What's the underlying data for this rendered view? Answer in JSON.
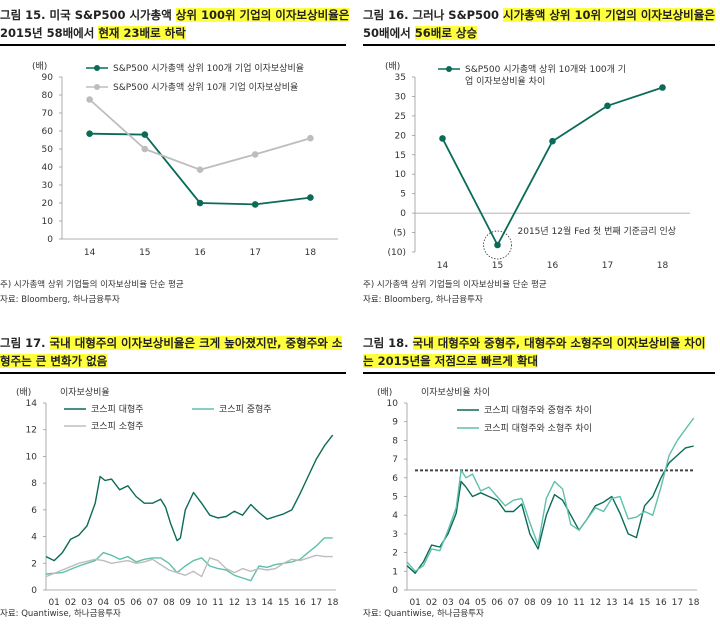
{
  "fig15": {
    "title_l1": "그림 15. 미국 S&P500 시가총액 ",
    "title_l1_hl": "상위 100위 기업의 이자보상비율은",
    "title_l2": "2015년 58배에서 ",
    "title_l2_hl": "현재 23배로 하락",
    "note": "주) 시가총액 상위 기업들의 이자보상비율 단순 평균",
    "source": "자료: Bloomberg, 하나금융투자"
  },
  "fig16": {
    "title_l1": "그림 16. 그러나 S&P500 ",
    "title_l1_hl": "시가총액 상위 10위 기업의 이자보상비율은",
    "title_l2": "50배에서 ",
    "title_l2_hl": "56배로 상승",
    "note": "주) 시가총액 상위 기업들의 이자보상비율 단순 평균",
    "source": "자료: Bloomberg, 하나금융투자"
  },
  "fig17": {
    "title_l1": "그림 17. ",
    "title_l1_hl": "국내 대형주의 이자보상비율은 크게 높아졌지만, 중형주와 소",
    "title_l2": "",
    "title_l2_hl": "형주는 큰 변화가 없음",
    "source": "자료: Quantiwise, 하나금융투자"
  },
  "fig18": {
    "title_l1": "그림 18. ",
    "title_l1_hl": "국내 대형주와 중형주, 대형주와 소형주의 이자보상비율 차이",
    "title_l2": "",
    "title_l2_hl": "는 2015년을 저점으로 빠르게 확대",
    "source": "자료: Quantiwise, 하나금융투자"
  },
  "chart_data": [
    {
      "type": "line",
      "unit": "(배)",
      "categories": [
        "14",
        "15",
        "16",
        "17",
        "18"
      ],
      "ylim": [
        0,
        90
      ],
      "yticks": [
        0,
        10,
        20,
        30,
        40,
        50,
        60,
        70,
        80,
        90
      ],
      "legend_position": "top-right",
      "series": [
        {
          "name": "S&P500 시가총액 상위 100개 기업 이자보상비율",
          "color": "#0b6b58",
          "values": [
            58.5,
            58,
            20,
            19.2,
            23
          ]
        },
        {
          "name": "S&P500 시가총액 상위 10개 기업 이자보상비율",
          "color": "#bdbdbd",
          "values": [
            77.5,
            50,
            38.5,
            47,
            56
          ]
        }
      ]
    },
    {
      "type": "line",
      "unit": "(배)",
      "categories": [
        "14",
        "15",
        "16",
        "17",
        "18"
      ],
      "ylim": [
        -10,
        35
      ],
      "yticks": [
        -10,
        -5,
        0,
        5,
        10,
        15,
        20,
        25,
        30,
        35
      ],
      "ytick_labels": [
        "(10)",
        "(5)",
        "0",
        "5",
        "10",
        "15",
        "20",
        "25",
        "30",
        "35"
      ],
      "legend_position": "top-right",
      "annotation": "2015년 12월 Fed 첫 번째 기준금리 인상",
      "series": [
        {
          "name": "S&P500 시가총액 상위 10개와 100개 기업 이자보상비율 차이",
          "color": "#0b6b58",
          "values": [
            19.2,
            -8.2,
            18.5,
            27.6,
            32.3
          ]
        }
      ]
    },
    {
      "type": "line",
      "unit": "(배)",
      "sublabel": "이자보상비율",
      "x_tick_labels": [
        "01",
        "02",
        "03",
        "04",
        "05",
        "06",
        "07",
        "08",
        "09",
        "10",
        "11",
        "12",
        "13",
        "14",
        "15",
        "16",
        "17",
        "18"
      ],
      "xlim": [
        2001,
        2018.7
      ],
      "ylim": [
        0,
        14
      ],
      "yticks": [
        0,
        2,
        4,
        6,
        8,
        10,
        12,
        14
      ],
      "legend_position": "top",
      "series": [
        {
          "name": "코스피 대형주",
          "color": "#0b6b58",
          "x": [
            2001.0,
            2001.5,
            2002.0,
            2002.5,
            2003.0,
            2003.5,
            2004.0,
            2004.3,
            2004.6,
            2005.0,
            2005.5,
            2006.0,
            2006.5,
            2007.0,
            2007.5,
            2008.0,
            2008.3,
            2008.6,
            2009.0,
            2009.2,
            2009.5,
            2010.0,
            2010.5,
            2011.0,
            2011.5,
            2012.0,
            2012.5,
            2013.0,
            2013.5,
            2014.0,
            2014.5,
            2015.0,
            2015.5,
            2016.0,
            2016.5,
            2017.0,
            2017.5,
            2018.0,
            2018.5
          ],
          "values": [
            2.5,
            2.2,
            2.8,
            3.8,
            4.1,
            4.8,
            6.5,
            8.5,
            8.2,
            8.3,
            7.5,
            7.8,
            7.0,
            6.5,
            6.5,
            6.8,
            6.2,
            5.0,
            3.7,
            3.9,
            6.0,
            7.3,
            6.5,
            5.6,
            5.4,
            5.5,
            5.9,
            5.6,
            6.4,
            5.8,
            5.3,
            5.5,
            5.7,
            6.0,
            7.2,
            8.5,
            9.8,
            10.8,
            11.6
          ]
        },
        {
          "name": "코스피 중형주",
          "color": "#5fc0aa",
          "x": [
            2001.0,
            2002.0,
            2003.0,
            2004.0,
            2004.5,
            2005.0,
            2005.5,
            2006.0,
            2006.5,
            2007.0,
            2007.5,
            2008.0,
            2008.5,
            2009.0,
            2009.5,
            2010.0,
            2010.5,
            2011.0,
            2011.5,
            2012.0,
            2012.5,
            2013.0,
            2013.5,
            2014.0,
            2014.5,
            2015.0,
            2015.5,
            2016.0,
            2016.5,
            2017.0,
            2017.5,
            2018.0,
            2018.5
          ],
          "values": [
            1.2,
            1.3,
            1.8,
            2.2,
            2.8,
            2.6,
            2.3,
            2.5,
            2.1,
            2.3,
            2.4,
            2.4,
            2.0,
            1.3,
            1.8,
            2.2,
            2.4,
            1.8,
            1.6,
            1.5,
            1.1,
            0.9,
            0.7,
            1.8,
            1.7,
            1.9,
            2.0,
            2.1,
            2.3,
            2.8,
            3.3,
            3.9,
            3.9
          ]
        },
        {
          "name": "코스피 소형주",
          "color": "#bdbdbd",
          "x": [
            2001.0,
            2002.0,
            2003.0,
            2004.0,
            2004.5,
            2005.0,
            2005.5,
            2006.0,
            2006.5,
            2007.0,
            2007.5,
            2008.0,
            2008.5,
            2009.0,
            2009.5,
            2010.0,
            2010.5,
            2011.0,
            2011.5,
            2012.0,
            2012.5,
            2013.0,
            2013.5,
            2014.0,
            2014.5,
            2015.0,
            2015.5,
            2016.0,
            2016.5,
            2017.0,
            2017.5,
            2018.0,
            2018.5
          ],
          "values": [
            1.0,
            1.5,
            2.0,
            2.3,
            2.2,
            2.0,
            2.1,
            2.2,
            2.0,
            2.1,
            2.3,
            1.9,
            1.5,
            1.3,
            1.1,
            1.4,
            1.0,
            2.4,
            2.2,
            1.6,
            1.3,
            1.6,
            1.4,
            1.6,
            1.5,
            1.6,
            2.0,
            2.3,
            2.2,
            2.4,
            2.6,
            2.5,
            2.5
          ]
        }
      ]
    },
    {
      "type": "line",
      "unit": "(배)",
      "sublabel": "이자보상비율 차이",
      "x_tick_labels": [
        "01",
        "02",
        "03",
        "04",
        "05",
        "06",
        "07",
        "08",
        "09",
        "10",
        "11",
        "12",
        "13",
        "14",
        "15",
        "16",
        "17",
        "18"
      ],
      "xlim": [
        2001,
        2018.7
      ],
      "ylim": [
        0,
        10
      ],
      "yticks": [
        0,
        1,
        2,
        3,
        4,
        5,
        6,
        7,
        8,
        9,
        10
      ],
      "legend_position": "top",
      "reference_line": 6.4,
      "series": [
        {
          "name": "코스피 대형주와 중형주 차이",
          "color": "#0b6b58",
          "x": [
            2001.0,
            2001.5,
            2002.0,
            2002.5,
            2003.0,
            2003.5,
            2004.0,
            2004.3,
            2004.6,
            2005.0,
            2005.5,
            2006.0,
            2006.5,
            2007.0,
            2007.5,
            2008.0,
            2008.5,
            2009.0,
            2009.5,
            2010.0,
            2010.5,
            2011.0,
            2011.5,
            2012.0,
            2012.5,
            2013.0,
            2013.5,
            2014.0,
            2014.5,
            2015.0,
            2015.5,
            2016.0,
            2016.5,
            2017.0,
            2017.5,
            2018.0,
            2018.5
          ],
          "values": [
            1.3,
            0.9,
            1.5,
            2.4,
            2.3,
            3.0,
            4.1,
            5.8,
            5.5,
            5.0,
            5.2,
            5.0,
            4.8,
            4.2,
            4.2,
            4.6,
            3.0,
            2.2,
            4.0,
            5.1,
            4.8,
            4.0,
            3.2,
            3.8,
            4.5,
            4.7,
            5.0,
            4.1,
            3.0,
            2.8,
            4.5,
            5.0,
            6.0,
            6.8,
            7.2,
            7.6,
            7.7
          ]
        },
        {
          "name": "코스피 대형주와 소형주 차이",
          "color": "#5fc0aa",
          "x": [
            2001.0,
            2001.5,
            2002.0,
            2002.5,
            2003.0,
            2003.5,
            2004.0,
            2004.3,
            2004.6,
            2005.0,
            2005.5,
            2006.0,
            2006.5,
            2007.0,
            2007.5,
            2008.0,
            2008.5,
            2009.0,
            2009.5,
            2010.0,
            2010.5,
            2011.0,
            2011.5,
            2012.0,
            2012.5,
            2013.0,
            2013.5,
            2014.0,
            2014.5,
            2015.0,
            2015.5,
            2016.0,
            2016.5,
            2017.0,
            2017.5,
            2018.0,
            2018.5
          ],
          "values": [
            1.5,
            1.0,
            1.3,
            2.2,
            2.1,
            3.2,
            4.4,
            6.4,
            6.0,
            6.2,
            5.3,
            5.5,
            5.0,
            4.5,
            4.8,
            4.9,
            3.6,
            2.4,
            4.9,
            5.8,
            5.4,
            3.5,
            3.2,
            3.8,
            4.4,
            4.2,
            4.9,
            5.0,
            3.8,
            3.9,
            4.2,
            4.0,
            5.5,
            7.2,
            8.0,
            8.6,
            9.2
          ]
        }
      ]
    }
  ]
}
